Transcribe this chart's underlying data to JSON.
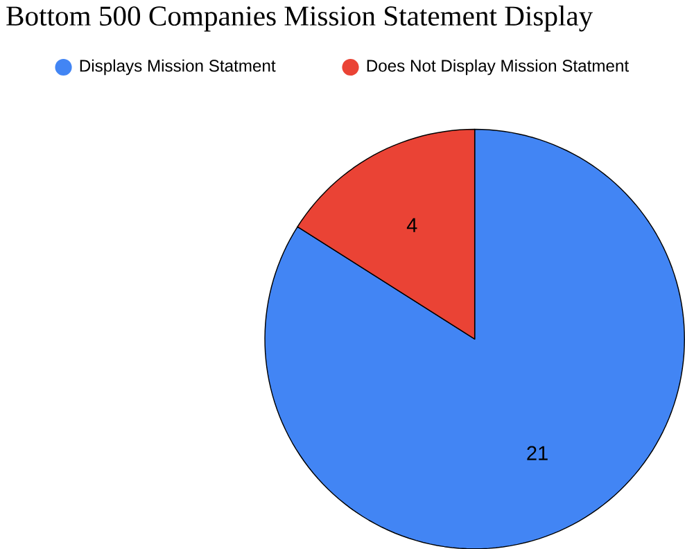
{
  "chart_data": {
    "type": "pie",
    "title": "Bottom 500 Companies Mission Statement Display",
    "categories": [
      "Displays Mission Statment",
      "Does Not Display Mission Statment"
    ],
    "values": [
      21,
      4
    ],
    "colors": [
      "#4285f4",
      "#ea4335"
    ],
    "data_labels": true,
    "legend": "top"
  }
}
